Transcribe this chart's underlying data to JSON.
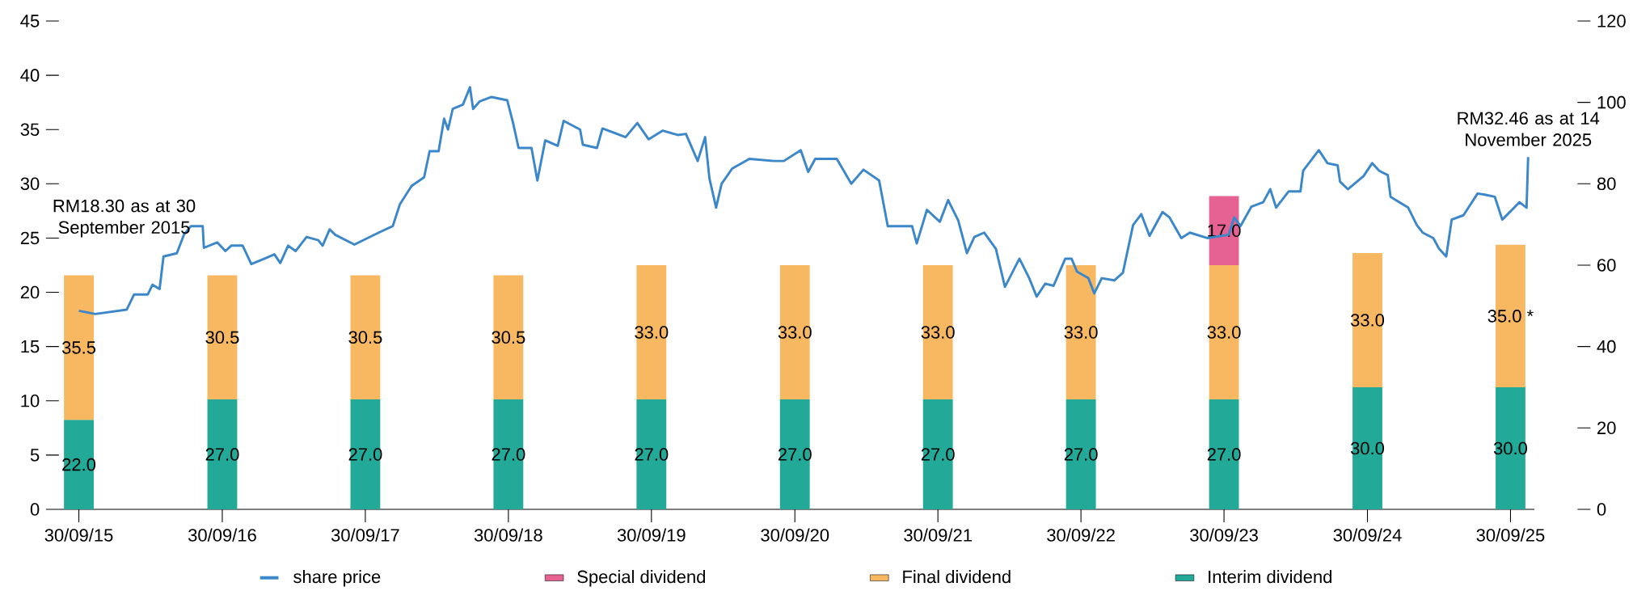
{
  "chart_data": {
    "type": "line",
    "stacked": true,
    "legend": "bottom",
    "xlim": [
      "2015-08-10",
      "2025-11-30"
    ],
    "xticks": [
      {
        "value": "2015-09-30",
        "label": "30/09/15"
      },
      {
        "value": "2016-09-30",
        "label": "30/09/16"
      },
      {
        "value": "2017-09-30",
        "label": "30/09/17"
      },
      {
        "value": "2018-09-30",
        "label": "30/09/18"
      },
      {
        "value": "2019-09-30",
        "label": "30/09/19"
      },
      {
        "value": "2020-09-30",
        "label": "30/09/20"
      },
      {
        "value": "2021-09-30",
        "label": "30/09/21"
      },
      {
        "value": "2022-09-30",
        "label": "30/09/22"
      },
      {
        "value": "2023-09-30",
        "label": "30/09/23"
      },
      {
        "value": "2024-09-30",
        "label": "30/09/24"
      },
      {
        "value": "2025-09-30",
        "label": "30/09/25"
      }
    ],
    "x": [
      "2015-09-30",
      "2016-09-30",
      "2017-09-30",
      "2018-09-30",
      "2019-09-30",
      "2020-09-30",
      "2021-09-30",
      "2022-09-30",
      "2023-09-30",
      "2024-09-30",
      "2025-09-30"
    ],
    "ylim": [
      0,
      45
    ],
    "yticks": [
      0,
      5,
      10,
      15,
      20,
      25,
      30,
      35,
      40,
      45
    ],
    "y2lim": [
      0,
      120
    ],
    "y2ticks": [
      0,
      20,
      40,
      60,
      80,
      100,
      120
    ],
    "annotations": [
      "RM18.30 as at 30 September 2015",
      {
        "text": "RM32.46 as at 14 November 2025",
        "x": "2025-11-14",
        "y": 32.46
      }
    ],
    "series": [
      {
        "name": "share price",
        "color": "#3b87c9",
        "x": [
          "2015-09-30",
          "2015-11-11",
          "2016-01-30",
          "2016-02-18",
          "2016-03-24",
          "2016-04-05",
          "2016-04-23",
          "2016-05-03",
          "2016-06-06",
          "2016-06-24",
          "2016-07-12",
          "2016-08-11",
          "2016-08-14",
          "2016-09-17",
          "2016-10-08",
          "2016-10-23",
          "2016-11-21",
          "2016-12-13",
          "2017-01-22",
          "2017-02-10",
          "2017-02-25",
          "2017-03-17",
          "2017-04-05",
          "2017-05-03",
          "2017-06-02",
          "2017-06-13",
          "2017-07-01",
          "2017-07-15",
          "2017-09-02",
          "2017-11-03",
          "2017-12-09",
          "2017-12-27",
          "2018-01-26",
          "2018-02-27",
          "2018-03-13",
          "2018-04-05",
          "2018-04-19",
          "2018-04-29",
          "2018-05-11",
          "2018-06-06",
          "2018-06-24",
          "2018-07-02",
          "2018-07-19",
          "2018-08-18",
          "2018-09-27",
          "2018-10-12",
          "2018-10-26",
          "2018-11-28",
          "2018-12-13",
          "2019-01-02",
          "2019-02-03",
          "2019-02-18",
          "2019-04-01",
          "2019-04-08",
          "2019-05-14",
          "2019-05-28",
          "2019-07-26",
          "2019-08-25",
          "2019-09-23",
          "2019-10-29",
          "2019-12-06",
          "2019-12-27",
          "2020-01-26",
          "2020-02-14",
          "2020-02-25",
          "2020-03-13",
          "2020-03-27",
          "2020-04-23",
          "2020-06-06",
          "2020-08-07",
          "2020-09-02",
          "2020-10-15",
          "2020-11-03",
          "2020-11-21",
          "2021-01-15",
          "2021-02-21",
          "2021-03-24",
          "2021-05-03",
          "2021-05-25",
          "2021-07-26",
          "2021-08-07",
          "2021-09-02",
          "2021-10-05",
          "2021-10-26",
          "2021-11-21",
          "2021-12-13",
          "2022-01-01",
          "2022-01-26",
          "2022-02-25",
          "2022-03-20",
          "2022-04-26",
          "2022-05-21",
          "2022-06-09",
          "2022-07-01",
          "2022-07-22",
          "2022-08-21",
          "2022-09-06",
          "2022-09-20",
          "2022-10-19",
          "2022-11-03",
          "2022-11-22",
          "2022-12-24",
          "2023-01-15",
          "2023-02-10",
          "2023-03-03",
          "2023-03-24",
          "2023-04-26",
          "2023-05-14",
          "2023-06-13",
          "2023-07-05",
          "2023-08-18",
          "2023-10-12",
          "2023-10-26",
          "2023-11-11",
          "2023-12-09",
          "2024-01-08",
          "2024-01-26",
          "2024-02-10",
          "2024-03-13",
          "2024-04-12",
          "2024-04-19",
          "2024-05-29",
          "2024-06-20",
          "2024-07-16",
          "2024-07-22",
          "2024-08-11",
          "2024-09-20",
          "2024-10-12",
          "2024-10-30",
          "2024-11-21",
          "2024-11-28",
          "2025-01-12",
          "2025-02-03",
          "2025-02-18",
          "2025-03-17",
          "2025-04-01",
          "2025-04-19",
          "2025-05-03",
          "2025-06-02",
          "2025-07-08",
          "2025-07-26",
          "2025-08-21",
          "2025-09-09",
          "2025-09-23",
          "2025-10-23",
          "2025-11-10",
          "2025-11-14"
        ],
        "values": [
          18.3,
          18.0,
          18.4,
          19.8,
          19.8,
          20.7,
          20.3,
          23.3,
          23.6,
          25.3,
          26.1,
          26.1,
          24.1,
          24.6,
          23.8,
          24.3,
          24.3,
          22.6,
          23.2,
          23.5,
          22.7,
          24.3,
          23.8,
          25.1,
          24.8,
          24.3,
          25.8,
          25.3,
          24.4,
          25.5,
          26.1,
          28.1,
          29.8,
          30.6,
          33.0,
          33.0,
          36.0,
          35.0,
          36.9,
          37.3,
          38.9,
          36.9,
          37.6,
          38.0,
          37.7,
          35.6,
          33.3,
          33.3,
          30.3,
          34.0,
          33.5,
          35.8,
          35.0,
          33.6,
          33.3,
          35.1,
          34.3,
          35.6,
          34.1,
          34.9,
          34.5,
          34.6,
          32.1,
          34.3,
          30.5,
          27.8,
          30.0,
          31.4,
          32.3,
          32.1,
          32.1,
          33.1,
          31.1,
          32.3,
          32.3,
          30.0,
          31.3,
          30.3,
          26.1,
          26.1,
          24.5,
          27.6,
          26.5,
          28.5,
          26.6,
          23.6,
          25.1,
          25.5,
          24.0,
          20.5,
          23.1,
          21.3,
          19.6,
          20.8,
          20.6,
          23.1,
          23.1,
          21.9,
          21.3,
          19.9,
          21.3,
          21.1,
          21.8,
          26.2,
          27.2,
          25.2,
          27.4,
          26.9,
          25.0,
          25.5,
          25.0,
          25.3,
          26.9,
          26.1,
          27.9,
          28.3,
          29.5,
          27.8,
          29.3,
          29.3,
          31.2,
          33.1,
          31.9,
          31.7,
          30.2,
          29.5,
          30.7,
          31.9,
          31.2,
          30.8,
          28.8,
          27.8,
          26.2,
          25.5,
          25.0,
          24.0,
          23.3,
          26.7,
          27.1,
          29.1,
          29.0,
          28.8,
          26.7,
          27.2,
          28.3,
          27.8,
          32.46
        ]
      },
      {
        "name": "Interim dividend",
        "type": "bar",
        "axis": "y2",
        "color": "#22a998",
        "values": [
          22,
          27,
          27,
          27,
          27,
          27,
          27,
          27,
          27,
          30,
          30
        ],
        "value_labels": [
          "22.0",
          "27.0",
          "27.0",
          "27.0",
          "27.0",
          "27.0",
          "27.0",
          "27.0",
          "27.0",
          "30.0",
          "30.0"
        ]
      },
      {
        "name": "Final dividend",
        "type": "bar",
        "axis": "y2",
        "color": "#f8b862",
        "values": [
          35.5,
          30.5,
          30.5,
          30.5,
          33,
          33,
          33,
          33,
          33,
          33,
          35
        ],
        "value_labels": [
          "35.5",
          "30.5",
          "30.5",
          "30.5",
          "33.0",
          "33.0",
          "33.0",
          "33.0",
          "33.0",
          "33.0",
          "35.0 *"
        ]
      },
      {
        "name": "Special dividend",
        "type": "bar",
        "axis": "y2",
        "color": "#e66293",
        "values": [
          null,
          null,
          null,
          null,
          null,
          null,
          null,
          null,
          17,
          null,
          null
        ],
        "value_labels": [
          null,
          null,
          null,
          null,
          null,
          null,
          null,
          null,
          "17.0",
          null,
          null
        ]
      }
    ]
  }
}
